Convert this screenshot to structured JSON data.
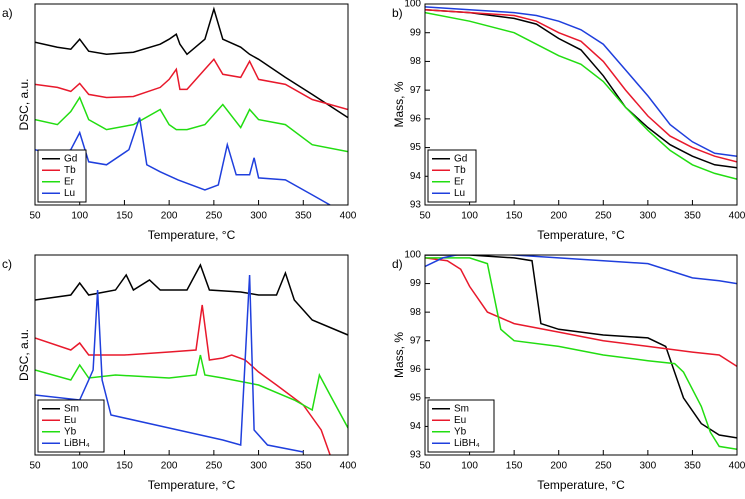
{
  "chart_data": [
    {
      "type": "line",
      "label": "a)",
      "xlabel": "Temperature, °C",
      "ylabel": "DSC, a.u.",
      "xlim": [
        50,
        400
      ],
      "xticks": [
        50,
        100,
        150,
        200,
        250,
        300,
        350,
        400
      ],
      "ylim": [
        0,
        200
      ],
      "legend": "lower left",
      "series": [
        {
          "name": "Gd",
          "color": "#000000",
          "x": [
            50,
            75,
            90,
            100,
            110,
            130,
            160,
            190,
            200,
            208,
            212,
            220,
            240,
            250,
            260,
            280,
            290,
            300,
            330,
            360,
            400
          ],
          "values": [
            162,
            157,
            155,
            165,
            153,
            150,
            152,
            160,
            165,
            170,
            160,
            150,
            165,
            195,
            165,
            157,
            150,
            145,
            127,
            110,
            87
          ]
        },
        {
          "name": "Tb",
          "color": "#e8192c",
          "x": [
            50,
            75,
            90,
            100,
            110,
            130,
            160,
            190,
            200,
            208,
            212,
            220,
            240,
            250,
            260,
            280,
            290,
            300,
            330,
            360,
            400
          ],
          "values": [
            120,
            117,
            113,
            121,
            110,
            107,
            108,
            117,
            125,
            135,
            115,
            115,
            135,
            145,
            130,
            127,
            143,
            125,
            120,
            105,
            95
          ]
        },
        {
          "name": "Er",
          "color": "#22dd11",
          "x": [
            50,
            75,
            90,
            100,
            110,
            130,
            160,
            190,
            200,
            208,
            212,
            220,
            240,
            250,
            260,
            280,
            290,
            300,
            330,
            360,
            400
          ],
          "values": [
            85,
            80,
            93,
            107,
            85,
            75,
            80,
            95,
            80,
            75,
            75,
            75,
            80,
            90,
            100,
            77,
            95,
            85,
            80,
            60,
            53
          ]
        },
        {
          "name": "Lu",
          "color": "#1f3fdd",
          "x": [
            50,
            75,
            90,
            100,
            110,
            130,
            155,
            167,
            175,
            190,
            210,
            240,
            255,
            265,
            275,
            290,
            295,
            300,
            330,
            360,
            380
          ],
          "values": [
            55,
            50,
            55,
            72,
            43,
            40,
            55,
            87,
            40,
            33,
            25,
            15,
            20,
            60,
            30,
            30,
            47,
            27,
            25,
            10,
            0
          ]
        }
      ]
    },
    {
      "type": "line",
      "label": "b)",
      "xlabel": "Temperature, °C",
      "ylabel": "Mass, %",
      "xlim": [
        50,
        400
      ],
      "xticks": [
        50,
        100,
        150,
        200,
        250,
        300,
        350,
        400
      ],
      "ylim": [
        93,
        100
      ],
      "yticks": [
        93,
        94,
        95,
        96,
        97,
        98,
        99,
        100
      ],
      "legend": "lower left",
      "series": [
        {
          "name": "Gd",
          "color": "#000000",
          "x": [
            50,
            100,
            150,
            175,
            200,
            225,
            250,
            275,
            300,
            325,
            350,
            375,
            400
          ],
          "values": [
            99.8,
            99.7,
            99.5,
            99.3,
            98.8,
            98.4,
            97.5,
            96.4,
            95.7,
            95.1,
            94.7,
            94.4,
            94.3
          ]
        },
        {
          "name": "Tb",
          "color": "#e8192c",
          "x": [
            50,
            100,
            150,
            175,
            200,
            225,
            250,
            275,
            300,
            325,
            350,
            375,
            400
          ],
          "values": [
            99.8,
            99.7,
            99.6,
            99.4,
            99.0,
            98.7,
            98.0,
            97.0,
            96.1,
            95.4,
            95.0,
            94.7,
            94.5
          ]
        },
        {
          "name": "Er",
          "color": "#22dd11",
          "x": [
            50,
            100,
            150,
            175,
            200,
            225,
            250,
            275,
            300,
            325,
            350,
            375,
            400
          ],
          "values": [
            99.7,
            99.4,
            99.0,
            98.6,
            98.2,
            97.9,
            97.3,
            96.4,
            95.6,
            94.9,
            94.4,
            94.1,
            93.9
          ]
        },
        {
          "name": "Lu",
          "color": "#1f3fdd",
          "x": [
            50,
            100,
            150,
            175,
            200,
            225,
            250,
            275,
            300,
            325,
            350,
            375,
            400
          ],
          "values": [
            99.9,
            99.8,
            99.7,
            99.6,
            99.4,
            99.1,
            98.6,
            97.7,
            96.8,
            95.8,
            95.2,
            94.8,
            94.7
          ]
        }
      ]
    },
    {
      "type": "line",
      "label": "c)",
      "xlabel": "Temperature, °C",
      "ylabel": "DSC, a.u.",
      "xlim": [
        50,
        400
      ],
      "xticks": [
        50,
        100,
        150,
        200,
        250,
        300,
        350,
        400
      ],
      "ylim": [
        0,
        200
      ],
      "legend": "lower left",
      "series": [
        {
          "name": "Sm",
          "color": "#000000",
          "x": [
            50,
            90,
            100,
            110,
            140,
            152,
            160,
            178,
            190,
            220,
            235,
            245,
            280,
            300,
            320,
            330,
            340,
            360,
            400
          ],
          "values": [
            155,
            160,
            172,
            160,
            165,
            180,
            165,
            175,
            165,
            165,
            190,
            165,
            163,
            160,
            160,
            182,
            155,
            135,
            120
          ]
        },
        {
          "name": "Eu",
          "color": "#e8192c",
          "x": [
            50,
            90,
            100,
            110,
            150,
            200,
            230,
            237,
            245,
            260,
            270,
            285,
            300,
            320,
            350,
            370,
            380
          ],
          "values": [
            117,
            105,
            112,
            100,
            100,
            103,
            105,
            150,
            95,
            97,
            100,
            95,
            83,
            70,
            50,
            25,
            0
          ]
        },
        {
          "name": "Yb",
          "color": "#22dd11",
          "x": [
            50,
            90,
            100,
            110,
            140,
            200,
            230,
            235,
            240,
            260,
            300,
            340,
            360,
            368,
            380,
            400
          ],
          "values": [
            85,
            75,
            90,
            77,
            80,
            77,
            80,
            100,
            80,
            77,
            70,
            55,
            45,
            80,
            60,
            27
          ]
        },
        {
          "name": "LiBH₄",
          "color": "#1f3fdd",
          "x": [
            50,
            100,
            110,
            115,
            120,
            125,
            135,
            200,
            260,
            280,
            290,
            295,
            310,
            350
          ],
          "values": [
            60,
            55,
            75,
            85,
            165,
            75,
            40,
            27,
            15,
            10,
            180,
            25,
            10,
            3
          ]
        }
      ]
    },
    {
      "type": "line",
      "label": "d)",
      "xlabel": "Temperature, °C",
      "ylabel": "Mass, %",
      "xlim": [
        50,
        400
      ],
      "xticks": [
        50,
        100,
        150,
        200,
        250,
        300,
        350,
        400
      ],
      "ylim": [
        93,
        100
      ],
      "yticks": [
        93,
        94,
        95,
        96,
        97,
        98,
        99,
        100
      ],
      "legend": "lower left",
      "series": [
        {
          "name": "Sm",
          "color": "#000000",
          "x": [
            50,
            100,
            150,
            170,
            180,
            200,
            250,
            300,
            320,
            340,
            360,
            380,
            400
          ],
          "values": [
            100.0,
            100.0,
            99.9,
            99.8,
            97.6,
            97.4,
            97.2,
            97.1,
            96.8,
            95.0,
            94.1,
            93.7,
            93.6
          ]
        },
        {
          "name": "Eu",
          "color": "#e8192c",
          "x": [
            50,
            75,
            90,
            100,
            120,
            150,
            200,
            250,
            300,
            350,
            380,
            400
          ],
          "values": [
            99.9,
            99.8,
            99.5,
            98.9,
            98.0,
            97.6,
            97.3,
            97.0,
            96.8,
            96.6,
            96.5,
            96.1
          ]
        },
        {
          "name": "Yb",
          "color": "#22dd11",
          "x": [
            50,
            100,
            120,
            135,
            150,
            200,
            250,
            300,
            330,
            340,
            360,
            370,
            380,
            400
          ],
          "values": [
            99.9,
            99.9,
            99.7,
            97.4,
            97.0,
            96.8,
            96.5,
            96.3,
            96.2,
            95.9,
            94.7,
            93.8,
            93.3,
            93.2
          ]
        },
        {
          "name": "LiBH₄",
          "color": "#1f3fdd",
          "x": [
            50,
            70,
            100,
            150,
            200,
            250,
            300,
            350,
            380,
            400
          ],
          "values": [
            99.6,
            99.9,
            100.1,
            100.0,
            99.9,
            99.8,
            99.7,
            99.2,
            99.1,
            99.0
          ]
        }
      ]
    }
  ]
}
